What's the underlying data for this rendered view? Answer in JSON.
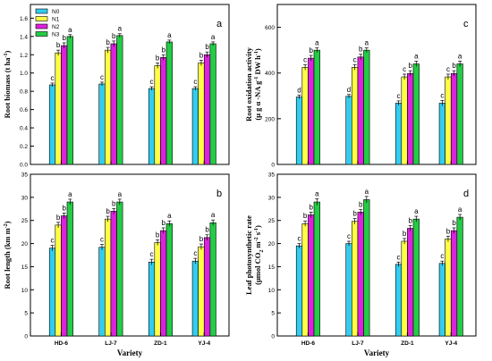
{
  "legend": {
    "items": [
      "N0",
      "N1",
      "N2",
      "N3"
    ]
  },
  "colors": {
    "N0": "#33ccee",
    "N1": "#ffff44",
    "N2": "#dd22dd",
    "N3": "#22cc44"
  },
  "xlabel": "Variety",
  "chart_data": [
    {
      "id": "a",
      "panel_label": "a",
      "type": "bar",
      "ylabel_lines": [
        "Root biomass (t ha",
        "-1",
        ")"
      ],
      "ylim": [
        0,
        1.75
      ],
      "yticks": [
        "0.0",
        "0.2",
        "0.4",
        "0.6",
        "0.8",
        "1.0",
        "1.2",
        "1.4",
        "1.6"
      ],
      "categories": [
        "HD-6",
        "LJ-7",
        "ZD-1",
        "YJ-4"
      ],
      "series": [
        {
          "name": "N0",
          "values": [
            0.87,
            0.88,
            0.83,
            0.83
          ],
          "errors": [
            0.02,
            0.02,
            0.02,
            0.02
          ],
          "letters": [
            "c",
            "c",
            "c",
            "c"
          ]
        },
        {
          "name": "N1",
          "values": [
            1.22,
            1.25,
            1.08,
            1.11
          ],
          "errors": [
            0.03,
            0.03,
            0.03,
            0.03
          ],
          "letters": [
            "b",
            "b",
            "b",
            "b"
          ]
        },
        {
          "name": "N2",
          "values": [
            1.3,
            1.32,
            1.17,
            1.2
          ],
          "errors": [
            0.03,
            0.03,
            0.03,
            0.03
          ],
          "letters": [
            "b",
            "b",
            "b",
            "b"
          ]
        },
        {
          "name": "N3",
          "values": [
            1.4,
            1.41,
            1.34,
            1.32
          ],
          "errors": [
            0.02,
            0.02,
            0.02,
            0.02
          ],
          "letters": [
            "a",
            "a",
            "a",
            "a"
          ]
        }
      ],
      "grid": false
    },
    {
      "id": "b",
      "panel_label": "b",
      "type": "bar",
      "ylabel_lines": [
        "Root length (km m",
        "-2",
        ")"
      ],
      "ylim": [
        0,
        35
      ],
      "yticks": [
        "0",
        "5",
        "10",
        "15",
        "20",
        "25",
        "30",
        "35"
      ],
      "categories": [
        "HD-6",
        "LJ-7",
        "ZD-1",
        "YJ-4"
      ],
      "series": [
        {
          "name": "N0",
          "values": [
            19.0,
            19.2,
            16.0,
            16.2
          ],
          "errors": [
            0.6,
            0.6,
            0.6,
            0.6
          ],
          "letters": [
            "c",
            "c",
            "c",
            "c"
          ]
        },
        {
          "name": "N1",
          "values": [
            24.0,
            25.3,
            20.2,
            19.3
          ],
          "errors": [
            0.6,
            0.6,
            0.6,
            0.6
          ],
          "letters": [
            "b",
            "b",
            "b",
            "b"
          ]
        },
        {
          "name": "N2",
          "values": [
            26.0,
            27.0,
            22.8,
            21.3
          ],
          "errors": [
            0.6,
            0.6,
            0.6,
            0.6
          ],
          "letters": [
            "b",
            "b",
            "b",
            "b"
          ]
        },
        {
          "name": "N3",
          "values": [
            29.0,
            29.0,
            24.3,
            24.5
          ],
          "errors": [
            0.6,
            0.6,
            0.6,
            0.6
          ],
          "letters": [
            "a",
            "a",
            "a",
            "a"
          ]
        }
      ],
      "grid": false
    },
    {
      "id": "c",
      "panel_label": "c",
      "type": "bar",
      "ylabel_lines": [
        "Root oxidation activity",
        "(μ g α -NA g",
        "-1",
        " DW h",
        "-1",
        ")"
      ],
      "ylim": [
        0,
        700
      ],
      "yticks": [
        "0",
        "200",
        "400",
        "600"
      ],
      "categories": [
        "HD-6",
        "LJ-7",
        "ZD-1",
        "YJ-4"
      ],
      "series": [
        {
          "name": "N0",
          "values": [
            295,
            298,
            268,
            268
          ],
          "errors": [
            8,
            8,
            10,
            12
          ],
          "letters": [
            "d",
            "d",
            "c",
            "c"
          ]
        },
        {
          "name": "N1",
          "values": [
            425,
            425,
            383,
            383
          ],
          "errors": [
            12,
            12,
            12,
            12
          ],
          "letters": [
            "c",
            "c",
            "c",
            "c"
          ]
        },
        {
          "name": "N2",
          "values": [
            465,
            470,
            398,
            398
          ],
          "errors": [
            12,
            12,
            12,
            12
          ],
          "letters": [
            "b",
            "b",
            "b",
            "b"
          ]
        },
        {
          "name": "N3",
          "values": [
            500,
            500,
            440,
            440
          ],
          "errors": [
            10,
            10,
            12,
            12
          ],
          "letters": [
            "a",
            "a",
            "a",
            "a"
          ]
        }
      ],
      "grid": false
    },
    {
      "id": "d",
      "panel_label": "d",
      "type": "bar",
      "ylabel_lines": [
        "Leaf photosynthetic rate",
        "(μmol CO",
        "2",
        " m",
        "-2",
        " s",
        "-1",
        ")"
      ],
      "ylim": [
        0,
        35
      ],
      "yticks": [
        "0",
        "5",
        "10",
        "15",
        "20",
        "25",
        "30",
        "35"
      ],
      "categories": [
        "HD-6",
        "LJ-7",
        "ZD-1",
        "YJ-4"
      ],
      "series": [
        {
          "name": "N0",
          "values": [
            19.5,
            20.0,
            15.5,
            15.7
          ],
          "errors": [
            0.5,
            0.5,
            0.5,
            0.5
          ],
          "letters": [
            "c",
            "c",
            "c",
            "c"
          ]
        },
        {
          "name": "N1",
          "values": [
            24.3,
            24.8,
            20.5,
            21.0
          ],
          "errors": [
            0.6,
            0.6,
            0.6,
            0.6
          ],
          "letters": [
            "b",
            "b",
            "b",
            "b"
          ]
        },
        {
          "name": "N2",
          "values": [
            26.2,
            26.8,
            23.3,
            22.8
          ],
          "errors": [
            0.6,
            0.6,
            0.6,
            0.6
          ],
          "letters": [
            "b",
            "b",
            "b",
            "b"
          ]
        },
        {
          "name": "N3",
          "values": [
            29.0,
            29.5,
            25.3,
            25.7
          ],
          "errors": [
            0.7,
            0.7,
            0.6,
            0.6
          ],
          "letters": [
            "a",
            "a",
            "a",
            "a"
          ]
        }
      ],
      "grid": false
    }
  ]
}
